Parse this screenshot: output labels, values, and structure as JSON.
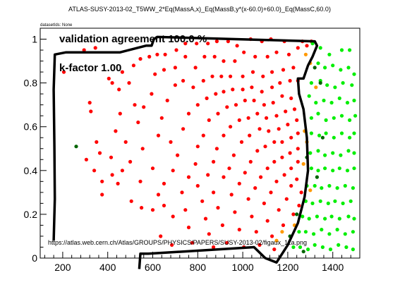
{
  "chart_data": {
    "type": "scatter",
    "title": "ATLAS-SUSY-2013-02_T5WW_2*Eq(MassA,x)_Eq(MassB,y*(x-60.0)+60.0)_Eq(MassC,60.0)",
    "corner_label": "datasetIds: None",
    "annotations": {
      "agreement": "validation agreement 100.0 %",
      "kfactor": "k-factor 1.00",
      "url": "https://atlas.web.cern.ch/Atlas/GROUPS/PHYSICS/PAPERS/SUSY-2013-02/figaux_11a.png"
    },
    "xlim": [
      100,
      1520
    ],
    "ylim": [
      0,
      1.05
    ],
    "x_ticks": [
      200,
      400,
      600,
      800,
      1000,
      1200,
      1400
    ],
    "x_tick_labels": [
      "200",
      "400",
      "600",
      "800",
      "1000",
      "1200",
      "1400"
    ],
    "y_ticks": [
      0,
      0.2,
      0.4,
      0.6,
      0.8,
      1.0
    ],
    "y_tick_labels": [
      "0",
      "0.2",
      "0.4",
      "0.6",
      "0.8",
      "1"
    ],
    "grid": false,
    "colors": {
      "red": "#ff0000",
      "green": "#00ee00",
      "darkgreen": "#006400",
      "orange": "#ff9900",
      "line": "#000000"
    },
    "contour": [
      [
        160,
        0.08
      ],
      [
        165,
        0.27
      ],
      [
        163,
        0.51
      ],
      [
        160,
        0.77
      ],
      [
        165,
        0.93
      ],
      [
        215,
        0.94
      ],
      [
        455,
        0.94
      ],
      [
        570,
        0.97
      ],
      [
        595,
        0.97
      ],
      [
        605,
        1.0
      ],
      [
        620,
        1.01
      ],
      [
        1320,
        0.99
      ],
      [
        1330,
        0.97
      ],
      [
        1310,
        0.92
      ],
      [
        1290,
        0.88
      ],
      [
        1270,
        0.82
      ],
      [
        1245,
        0.82
      ],
      [
        1250,
        0.75
      ],
      [
        1270,
        0.68
      ],
      [
        1285,
        0.55
      ],
      [
        1290,
        0.4
      ],
      [
        1275,
        0.28
      ],
      [
        1245,
        0.16
      ],
      [
        1200,
        0.06
      ],
      [
        1150,
        -0.02
      ],
      [
        1100,
        0.0
      ],
      [
        1050,
        0.05
      ],
      [
        580,
        0.02
      ],
      [
        545,
        0.02
      ],
      [
        540,
        -0.05
      ]
    ],
    "points_red": [
      [
        205,
        0.85
      ],
      [
        295,
        0.95
      ],
      [
        345,
        0.96
      ],
      [
        320,
        0.71
      ],
      [
        325,
        0.67
      ],
      [
        350,
        0.53
      ],
      [
        305,
        0.45
      ],
      [
        365,
        0.48
      ],
      [
        340,
        0.4
      ],
      [
        375,
        0.35
      ],
      [
        375,
        0.29
      ],
      [
        405,
        0.82
      ],
      [
        420,
        0.8
      ],
      [
        450,
        0.77
      ],
      [
        465,
        0.85
      ],
      [
        495,
        0.8
      ],
      [
        515,
        0.88
      ],
      [
        545,
        0.91
      ],
      [
        585,
        0.92
      ],
      [
        620,
        0.93
      ],
      [
        655,
        0.93
      ],
      [
        705,
        0.95
      ],
      [
        745,
        0.98
      ],
      [
        795,
        0.98
      ],
      [
        845,
        0.98
      ],
      [
        885,
        0.99
      ],
      [
        935,
        0.99
      ],
      [
        975,
        0.97
      ],
      [
        1035,
        1.0
      ],
      [
        1085,
        0.99
      ],
      [
        1125,
        1.0
      ],
      [
        1185,
        0.99
      ],
      [
        1265,
        0.99
      ],
      [
        1305,
        0.99
      ],
      [
        455,
        0.66
      ],
      [
        435,
        0.58
      ],
      [
        480,
        0.53
      ],
      [
        415,
        0.46
      ],
      [
        465,
        0.4
      ],
      [
        420,
        0.38
      ],
      [
        445,
        0.34
      ],
      [
        500,
        0.44
      ],
      [
        535,
        0.62
      ],
      [
        560,
        0.69
      ],
      [
        520,
        0.7
      ],
      [
        595,
        0.75
      ],
      [
        610,
        0.84
      ],
      [
        650,
        0.86
      ],
      [
        700,
        0.87
      ],
      [
        745,
        0.92
      ],
      [
        790,
        0.87
      ],
      [
        830,
        0.92
      ],
      [
        875,
        0.92
      ],
      [
        915,
        0.9
      ],
      [
        965,
        0.9
      ],
      [
        1005,
        0.94
      ],
      [
        1055,
        0.92
      ],
      [
        1110,
        0.92
      ],
      [
        1150,
        0.94
      ],
      [
        1205,
        0.93
      ],
      [
        1245,
        0.96
      ],
      [
        505,
        0.26
      ],
      [
        550,
        0.23
      ],
      [
        600,
        0.22
      ],
      [
        545,
        0.35
      ],
      [
        600,
        0.41
      ],
      [
        555,
        0.5
      ],
      [
        625,
        0.56
      ],
      [
        640,
        0.64
      ],
      [
        665,
        0.72
      ],
      [
        700,
        0.79
      ],
      [
        735,
        0.81
      ],
      [
        780,
        0.78
      ],
      [
        825,
        0.81
      ],
      [
        865,
        0.83
      ],
      [
        905,
        0.83
      ],
      [
        945,
        0.83
      ],
      [
        1000,
        0.83
      ],
      [
        1045,
        0.85
      ],
      [
        1090,
        0.83
      ],
      [
        1130,
        0.85
      ],
      [
        1180,
        0.86
      ],
      [
        1225,
        0.87
      ],
      [
        625,
        0.29
      ],
      [
        650,
        0.24
      ],
      [
        690,
        0.19
      ],
      [
        635,
        0.1
      ],
      [
        685,
        0.06
      ],
      [
        650,
        0.34
      ],
      [
        690,
        0.4
      ],
      [
        710,
        0.47
      ],
      [
        680,
        0.53
      ],
      [
        735,
        0.59
      ],
      [
        760,
        0.66
      ],
      [
        800,
        0.7
      ],
      [
        840,
        0.73
      ],
      [
        880,
        0.75
      ],
      [
        915,
        0.76
      ],
      [
        955,
        0.77
      ],
      [
        1000,
        0.77
      ],
      [
        1040,
        0.78
      ],
      [
        1085,
        0.76
      ],
      [
        1130,
        0.78
      ],
      [
        1165,
        0.8
      ],
      [
        1210,
        0.81
      ],
      [
        1245,
        0.81
      ],
      [
        730,
        0.3
      ],
      [
        745,
        0.22
      ],
      [
        760,
        0.14
      ],
      [
        775,
        0.07
      ],
      [
        760,
        0.37
      ],
      [
        790,
        0.43
      ],
      [
        800,
        0.51
      ],
      [
        825,
        0.56
      ],
      [
        850,
        0.63
      ],
      [
        890,
        0.66
      ],
      [
        930,
        0.69
      ],
      [
        970,
        0.7
      ],
      [
        1010,
        0.72
      ],
      [
        1050,
        0.72
      ],
      [
        1095,
        0.7
      ],
      [
        1135,
        0.71
      ],
      [
        1175,
        0.74
      ],
      [
        1215,
        0.73
      ],
      [
        800,
        0.33
      ],
      [
        820,
        0.26
      ],
      [
        835,
        0.18
      ],
      [
        850,
        0.11
      ],
      [
        870,
        0.05
      ],
      [
        845,
        0.38
      ],
      [
        870,
        0.44
      ],
      [
        885,
        0.5
      ],
      [
        915,
        0.56
      ],
      [
        945,
        0.6
      ],
      [
        985,
        0.63
      ],
      [
        1025,
        0.64
      ],
      [
        1065,
        0.66
      ],
      [
        1105,
        0.64
      ],
      [
        1150,
        0.65
      ],
      [
        1190,
        0.67
      ],
      [
        1230,
        0.68
      ],
      [
        870,
        0.3
      ],
      [
        890,
        0.23
      ],
      [
        910,
        0.15
      ],
      [
        930,
        0.07
      ],
      [
        915,
        0.37
      ],
      [
        940,
        0.41
      ],
      [
        960,
        0.47
      ],
      [
        995,
        0.53
      ],
      [
        1030,
        0.56
      ],
      [
        1075,
        0.59
      ],
      [
        1115,
        0.58
      ],
      [
        1160,
        0.59
      ],
      [
        1200,
        0.61
      ],
      [
        1240,
        0.63
      ],
      [
        950,
        0.29
      ],
      [
        965,
        0.21
      ],
      [
        985,
        0.13
      ],
      [
        1005,
        0.05
      ],
      [
        985,
        0.34
      ],
      [
        1010,
        0.39
      ],
      [
        1035,
        0.44
      ],
      [
        1065,
        0.49
      ],
      [
        1100,
        0.51
      ],
      [
        1140,
        0.53
      ],
      [
        1175,
        0.53
      ],
      [
        1215,
        0.55
      ],
      [
        1245,
        0.57
      ],
      [
        1025,
        0.27
      ],
      [
        1040,
        0.19
      ],
      [
        1060,
        0.12
      ],
      [
        1075,
        0.06
      ],
      [
        1055,
        0.32
      ],
      [
        1080,
        0.37
      ],
      [
        1110,
        0.41
      ],
      [
        1140,
        0.44
      ],
      [
        1175,
        0.46
      ],
      [
        1210,
        0.48
      ],
      [
        1245,
        0.5
      ],
      [
        1095,
        0.25
      ],
      [
        1110,
        0.17
      ],
      [
        1130,
        0.1
      ],
      [
        1140,
        0.04
      ],
      [
        1125,
        0.3
      ],
      [
        1150,
        0.35
      ],
      [
        1185,
        0.38
      ],
      [
        1215,
        0.41
      ],
      [
        1245,
        0.44
      ],
      [
        1160,
        0.22
      ],
      [
        1180,
        0.15
      ],
      [
        1195,
        0.27
      ],
      [
        1215,
        0.33
      ],
      [
        1240,
        0.36
      ],
      [
        1225,
        0.2
      ],
      [
        1250,
        0.24
      ],
      [
        1260,
        0.3
      ],
      [
        1285,
        0.97
      ]
    ],
    "points_green": [
      [
        1310,
        0.98
      ],
      [
        1345,
        0.96
      ],
      [
        1385,
        0.93
      ],
      [
        1440,
        0.95
      ],
      [
        1475,
        0.95
      ],
      [
        1335,
        0.89
      ],
      [
        1365,
        0.87
      ],
      [
        1400,
        0.88
      ],
      [
        1435,
        0.86
      ],
      [
        1470,
        0.87
      ],
      [
        1495,
        0.84
      ],
      [
        1305,
        0.8
      ],
      [
        1345,
        0.81
      ],
      [
        1375,
        0.79
      ],
      [
        1410,
        0.78
      ],
      [
        1445,
        0.8
      ],
      [
        1485,
        0.79
      ],
      [
        1295,
        0.74
      ],
      [
        1325,
        0.71
      ],
      [
        1360,
        0.72
      ],
      [
        1395,
        0.71
      ],
      [
        1430,
        0.73
      ],
      [
        1465,
        0.71
      ],
      [
        1495,
        0.72
      ],
      [
        1305,
        0.64
      ],
      [
        1335,
        0.66
      ],
      [
        1370,
        0.63
      ],
      [
        1405,
        0.64
      ],
      [
        1440,
        0.65
      ],
      [
        1475,
        0.63
      ],
      [
        1500,
        0.65
      ],
      [
        1305,
        0.57
      ],
      [
        1340,
        0.56
      ],
      [
        1370,
        0.57
      ],
      [
        1405,
        0.55
      ],
      [
        1440,
        0.57
      ],
      [
        1475,
        0.55
      ],
      [
        1495,
        0.57
      ],
      [
        1300,
        0.48
      ],
      [
        1335,
        0.49
      ],
      [
        1365,
        0.47
      ],
      [
        1400,
        0.48
      ],
      [
        1435,
        0.47
      ],
      [
        1470,
        0.49
      ],
      [
        1495,
        0.48
      ],
      [
        1305,
        0.41
      ],
      [
        1335,
        0.4
      ],
      [
        1365,
        0.41
      ],
      [
        1400,
        0.4
      ],
      [
        1430,
        0.41
      ],
      [
        1465,
        0.4
      ],
      [
        1495,
        0.41
      ],
      [
        1285,
        0.33
      ],
      [
        1320,
        0.33
      ],
      [
        1350,
        0.32
      ],
      [
        1385,
        0.33
      ],
      [
        1420,
        0.32
      ],
      [
        1455,
        0.33
      ],
      [
        1490,
        0.32
      ],
      [
        1280,
        0.26
      ],
      [
        1310,
        0.25
      ],
      [
        1345,
        0.26
      ],
      [
        1380,
        0.25
      ],
      [
        1410,
        0.26
      ],
      [
        1445,
        0.25
      ],
      [
        1480,
        0.26
      ],
      [
        1265,
        0.19
      ],
      [
        1295,
        0.18
      ],
      [
        1330,
        0.19
      ],
      [
        1365,
        0.18
      ],
      [
        1395,
        0.19
      ],
      [
        1430,
        0.18
      ],
      [
        1470,
        0.19
      ],
      [
        1495,
        0.18
      ],
      [
        1250,
        0.12
      ],
      [
        1280,
        0.12
      ],
      [
        1315,
        0.11
      ],
      [
        1350,
        0.13
      ],
      [
        1385,
        0.11
      ],
      [
        1420,
        0.13
      ],
      [
        1455,
        0.11
      ],
      [
        1490,
        0.12
      ],
      [
        1225,
        0.05
      ],
      [
        1255,
        0.05
      ],
      [
        1290,
        0.04
      ],
      [
        1320,
        0.06
      ],
      [
        1355,
        0.05
      ],
      [
        1390,
        0.04
      ],
      [
        1425,
        0.06
      ],
      [
        1460,
        0.05
      ],
      [
        1490,
        0.04
      ]
    ],
    "points_darkgreen": [
      [
        260,
        0.51
      ],
      [
        1320,
        0.87
      ],
      [
        1345,
        0.8
      ],
      [
        1355,
        0.55
      ],
      [
        1330,
        0.37
      ],
      [
        1285,
        0.46
      ],
      [
        1240,
        0.2
      ],
      [
        1210,
        0.1
      ],
      [
        1270,
        0.03
      ]
    ],
    "points_orange": [
      [
        1300,
        0.89
      ],
      [
        1325,
        0.78
      ],
      [
        1275,
        0.58
      ],
      [
        1285,
        0.53
      ],
      [
        1270,
        0.43
      ],
      [
        1300,
        0.31
      ],
      [
        1150,
        0.08
      ],
      [
        1175,
        0.12
      ],
      [
        1230,
        0.15
      ],
      [
        1280,
        0.93
      ]
    ]
  }
}
